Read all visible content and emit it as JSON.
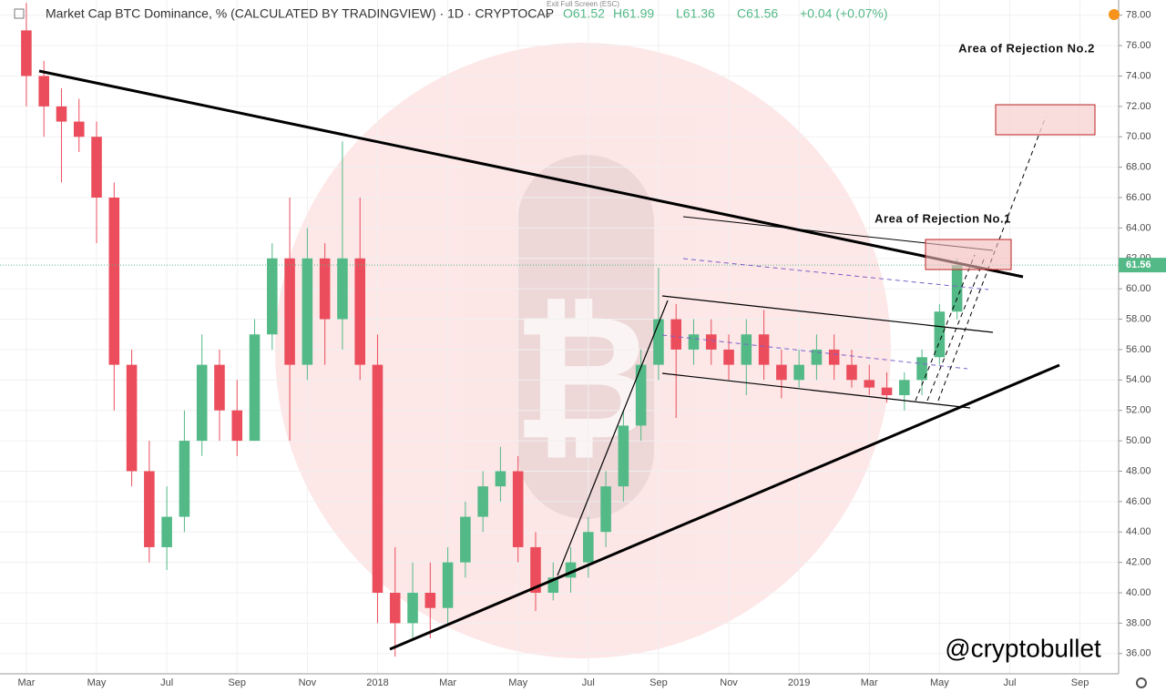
{
  "chart_data": {
    "type": "candlestick",
    "title": "Market Cap BTC Dominance, % (CALCULATED BY TRADINGVIEW) · 1D · CRYPTOCAP",
    "ohlc_text": [
      "O61.52",
      "H61.99",
      "L61.36",
      "C61.56",
      "+0.04 (+0.07%)"
    ],
    "exit_hint": "Exit Full Screen (ESC)",
    "annotations": [
      "Area of Rejection No.2",
      "Area of Rejection No.1"
    ],
    "watermark": "@cryptobullet",
    "up_color": "#53b987",
    "down_color": "#eb4d5c",
    "categories": [
      null,
      null,
      null,
      null,
      null,
      null,
      null,
      null,
      null,
      null,
      null,
      null,
      null,
      null,
      null,
      null,
      null,
      null,
      null,
      null,
      null,
      null,
      null,
      null,
      null,
      null,
      null,
      null,
      null,
      null,
      null,
      null,
      null,
      null,
      null,
      null,
      null,
      null,
      null,
      null,
      null,
      null,
      null,
      null,
      null,
      null,
      null,
      null,
      null,
      null,
      null,
      null,
      null,
      null
    ],
    "open": [
      77,
      74,
      72,
      71,
      70,
      66,
      55,
      48,
      43,
      45,
      50,
      55,
      52,
      50,
      57,
      62,
      55,
      62,
      58,
      62,
      55,
      40,
      38,
      40,
      39,
      42,
      45,
      47,
      48,
      43,
      40,
      41,
      42,
      44,
      47,
      51,
      55,
      58,
      56,
      57,
      56,
      55,
      57,
      55,
      54,
      55,
      56,
      55,
      54,
      53.5,
      53,
      54,
      55.5,
      58.5
    ],
    "high": [
      78.8,
      75,
      73.2,
      72.5,
      71,
      67,
      56,
      50,
      47,
      52,
      57,
      56,
      54,
      58,
      63,
      66,
      64,
      63,
      69.7,
      66,
      57,
      43,
      42,
      42,
      43,
      46,
      48,
      49.6,
      49,
      44,
      42,
      43,
      45,
      48,
      52,
      56,
      61.4,
      59,
      58,
      58,
      57,
      58,
      58.6,
      56,
      56,
      57,
      57,
      56,
      55,
      54.5,
      54.5,
      56,
      59,
      61.99
    ],
    "low": [
      72,
      70,
      67,
      69,
      63,
      52,
      47,
      42,
      41.5,
      44,
      49,
      50,
      49,
      50,
      56,
      50,
      54,
      55,
      56,
      54,
      38,
      35.8,
      37,
      37,
      38,
      41,
      44,
      46,
      42,
      38.8,
      39.5,
      40,
      41,
      43,
      46,
      50,
      54,
      51.5,
      55,
      55,
      54,
      53,
      54,
      52.8,
      53.5,
      54,
      54,
      53.5,
      53,
      52.5,
      52,
      53,
      55,
      58
    ],
    "close": [
      74,
      72,
      71,
      70,
      66,
      55,
      48,
      43,
      45,
      50,
      55,
      52,
      50,
      57,
      62,
      55,
      62,
      58,
      62,
      55,
      40,
      38,
      40,
      39,
      42,
      45,
      47,
      48,
      43,
      40,
      41,
      42,
      44,
      47,
      51,
      55,
      58,
      56,
      57,
      56,
      55,
      57,
      55,
      54,
      55,
      56,
      55,
      54,
      53.5,
      53,
      54,
      55.5,
      58.5,
      61.56
    ],
    "last_price": 61.56,
    "xlim": [
      -1.5,
      62.2
    ],
    "xticks": [
      {
        "value": 0,
        "label": "Mar"
      },
      {
        "value": 4,
        "label": "May"
      },
      {
        "value": 8,
        "label": "Jul"
      },
      {
        "value": 12,
        "label": "Sep"
      },
      {
        "value": 16,
        "label": "Nov"
      },
      {
        "value": 20,
        "label": "2018"
      },
      {
        "value": 24,
        "label": "Mar"
      },
      {
        "value": 28,
        "label": "May"
      },
      {
        "value": 32,
        "label": "Jul"
      },
      {
        "value": 36,
        "label": "Sep"
      },
      {
        "value": 40,
        "label": "Nov"
      },
      {
        "value": 44,
        "label": "2019"
      },
      {
        "value": 48,
        "label": "Mar"
      },
      {
        "value": 52,
        "label": "May"
      },
      {
        "value": 56,
        "label": "Jul"
      },
      {
        "value": 60,
        "label": "Sep"
      }
    ],
    "ylim": [
      34.67,
      79
    ],
    "yticks": [
      {
        "value": 36,
        "label": "36.00"
      },
      {
        "value": 38,
        "label": "38.00"
      },
      {
        "value": 40,
        "label": "40.00"
      },
      {
        "value": 42,
        "label": "42.00"
      },
      {
        "value": 44,
        "label": "44.00"
      },
      {
        "value": 46,
        "label": "46.00"
      },
      {
        "value": 48,
        "label": "48.00"
      },
      {
        "value": 50,
        "label": "50.00"
      },
      {
        "value": 52,
        "label": "52.00"
      },
      {
        "value": 54,
        "label": "54.00"
      },
      {
        "value": 56,
        "label": "56.00"
      },
      {
        "value": 58,
        "label": "58.00"
      },
      {
        "value": 60,
        "label": "60.00"
      },
      {
        "value": 62,
        "label": "62.00"
      },
      {
        "value": 64,
        "label": "64.00"
      },
      {
        "value": 66,
        "label": "66.00"
      },
      {
        "value": 68,
        "label": "68.00"
      },
      {
        "value": 70,
        "label": "70.00"
      },
      {
        "value": 72,
        "label": "72.00"
      },
      {
        "value": 74,
        "label": "74.00"
      },
      {
        "value": 76,
        "label": "76.00"
      },
      {
        "value": 78,
        "label": "78.00"
      }
    ]
  }
}
